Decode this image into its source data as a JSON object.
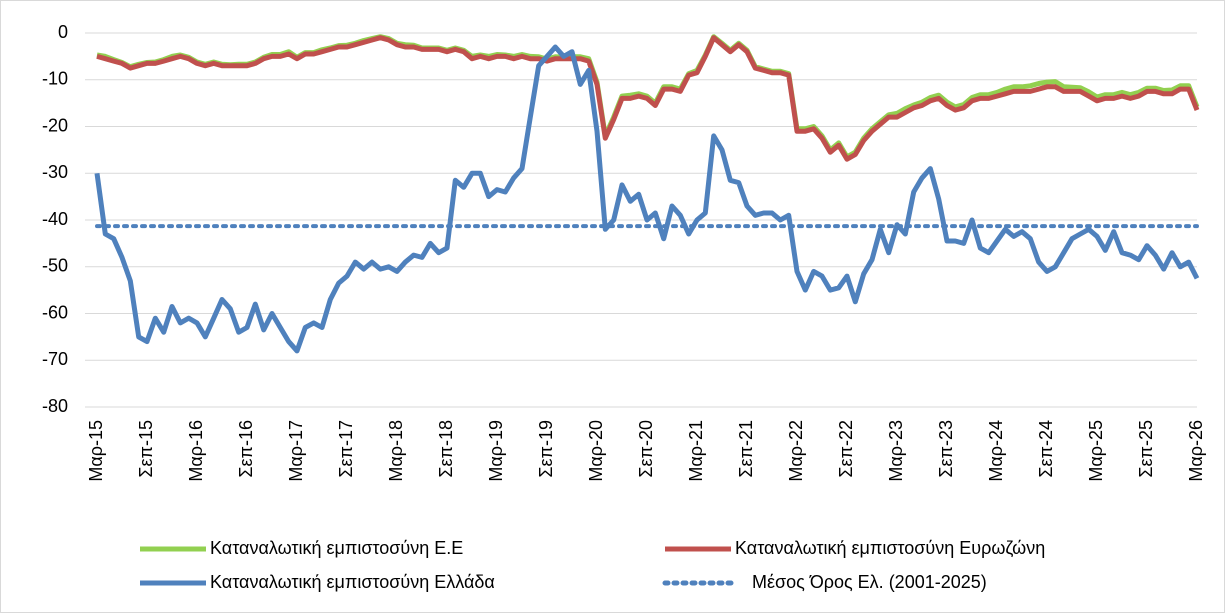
{
  "chart_data": {
    "type": "line",
    "categories": [
      "Μαρ-15",
      null,
      null,
      null,
      null,
      null,
      "Σεπ-15",
      null,
      null,
      null,
      null,
      null,
      "Μαρ-16",
      null,
      null,
      null,
      null,
      null,
      "Σεπ-16",
      null,
      null,
      null,
      null,
      null,
      "Μαρ-17",
      null,
      null,
      null,
      null,
      null,
      "Σεπ-17",
      null,
      null,
      null,
      null,
      null,
      "Μαρ-18",
      null,
      null,
      null,
      null,
      null,
      "Σεπ-18",
      null,
      null,
      null,
      null,
      null,
      "Μαρ-19",
      null,
      null,
      null,
      null,
      null,
      "Σεπ-19",
      null,
      null,
      null,
      null,
      null,
      "Μαρ-20",
      null,
      null,
      null,
      null,
      null,
      "Σεπ-20",
      null,
      null,
      null,
      null,
      null,
      "Μαρ-21",
      null,
      null,
      null,
      null,
      null,
      "Σεπ-21",
      null,
      null,
      null,
      null,
      null,
      "Μαρ-22",
      null,
      null,
      null,
      null,
      null,
      "Σεπ-22",
      null,
      null,
      null,
      null,
      null,
      "Μαρ-23",
      null,
      null,
      null,
      null,
      null,
      "Σεπ-23",
      null,
      null,
      null,
      null,
      null,
      "Μαρ-24",
      null,
      null,
      null,
      null,
      null,
      "Σεπ-24",
      null,
      null,
      null,
      null,
      null,
      "Μαρ-25",
      null,
      null,
      null,
      null,
      null,
      "Σεπ-25",
      null,
      null,
      null,
      null,
      null,
      "Μαρ-26"
    ],
    "series": [
      {
        "name": "Καταναλωτική εμπιστοσύνη Ε.Ε",
        "color": "#92d050",
        "values": [
          -4.7,
          -5,
          -5.7,
          -6.3,
          -7.2,
          -6.7,
          -6.3,
          -6.2,
          -5.7,
          -5,
          -4.7,
          -5.2,
          -6.2,
          -6.7,
          -6.2,
          -6.7,
          -6.8,
          -6.7,
          -6.7,
          -6.2,
          -5.2,
          -4.6,
          -4.6,
          -4,
          -5.2,
          -4.2,
          -4.2,
          -3.6,
          -3.2,
          -2.7,
          -2.6,
          -2.2,
          -1.6,
          -1.2,
          -0.8,
          -1.2,
          -2.2,
          -2.5,
          -2.6,
          -3.2,
          -3.2,
          -3.2,
          -3.7,
          -3.2,
          -3.7,
          -5,
          -4.7,
          -5,
          -4.6,
          -4.7,
          -5,
          -4.6,
          -5,
          -5.1,
          -5.6,
          -5.1,
          -5.2,
          -5.1,
          -5.1,
          -5.5,
          -10.5,
          -22,
          -18,
          -13.5,
          -13.3,
          -13,
          -13.5,
          -15,
          -11.5,
          -11.5,
          -12,
          -8.7,
          -8,
          -4.7,
          -0.8,
          -2.2,
          -3.7,
          -2.2,
          -3.7,
          -7.2,
          -7.7,
          -8.2,
          -8.2,
          -8.7,
          -20.5,
          -20.5,
          -20,
          -22,
          -25,
          -23.5,
          -26.5,
          -25.5,
          -22.5,
          -20.5,
          -19,
          -17.5,
          -17.2,
          -16.2,
          -15.4,
          -14.8,
          -13.8,
          -13.3,
          -14.8,
          -15.8,
          -15.3,
          -13.8,
          -13.2,
          -13.2,
          -12.7,
          -12,
          -11.5,
          -11.5,
          -11.3,
          -10.8,
          -10.5,
          -10.4,
          -11.5,
          -11.6,
          -11.7,
          -12.6,
          -13.7,
          -13.2,
          -13.2,
          -12.7,
          -13.2,
          -12.7,
          -11.8,
          -11.8,
          -12.3,
          -12.2,
          -11.3,
          -11.3,
          -15.8
        ]
      },
      {
        "name": "Καταναλωτική εμπιστοσύνη Ευρωζώνη",
        "color": "#c0504d",
        "values": [
          -5,
          -5.5,
          -6,
          -6.5,
          -7.5,
          -7,
          -6.5,
          -6.5,
          -6,
          -5.5,
          -5,
          -5.5,
          -6.5,
          -7,
          -6.5,
          -7,
          -7,
          -7,
          -7,
          -6.5,
          -5.5,
          -5,
          -5,
          -4.5,
          -5.5,
          -4.5,
          -4.5,
          -4,
          -3.5,
          -3,
          -3,
          -2.5,
          -2,
          -1.5,
          -1,
          -1.5,
          -2.5,
          -3,
          -3,
          -3.5,
          -3.5,
          -3.5,
          -4,
          -3.5,
          -4,
          -5.5,
          -5,
          -5.5,
          -5,
          -5,
          -5.5,
          -5,
          -5.5,
          -5.5,
          -6,
          -5.5,
          -5.5,
          -5.5,
          -5.5,
          -6,
          -11,
          -22.5,
          -18.5,
          -14,
          -14,
          -13.5,
          -14,
          -15.5,
          -12,
          -12,
          -12.5,
          -9,
          -8.5,
          -5,
          -1,
          -2.5,
          -4,
          -2.5,
          -4,
          -7.5,
          -8,
          -8.5,
          -8.5,
          -9,
          -21,
          -21,
          -20.5,
          -22.5,
          -25.5,
          -24,
          -27,
          -26,
          -23,
          -21,
          -19.5,
          -18,
          -18,
          -17,
          -16,
          -15.5,
          -14.5,
          -14,
          -15.5,
          -16.5,
          -16,
          -14.5,
          -14,
          -14,
          -13.5,
          -13,
          -12.5,
          -12.5,
          -12.5,
          -12,
          -11.5,
          -11.5,
          -12.5,
          -12.5,
          -12.5,
          -13.5,
          -14.5,
          -14,
          -14,
          -13.5,
          -14,
          -13.5,
          -12.5,
          -12.5,
          -13,
          -13,
          -12,
          -12,
          -16.5
        ]
      },
      {
        "name": "Καταναλωτική εμπιστοσύνη Ελλάδα",
        "color": "#4f81bd",
        "values": [
          -30,
          -43,
          -44,
          -48,
          -53,
          -65,
          -66,
          -61,
          -64,
          -58.5,
          -62,
          -61,
          -62,
          -65,
          -61,
          -57,
          -59,
          -64,
          -63,
          -58,
          -63.5,
          -60,
          -63,
          -66,
          -68,
          -63,
          -62,
          -63,
          -57,
          -53.5,
          -52,
          -49,
          -50.5,
          -49,
          -50.5,
          -50,
          -51,
          -49,
          -47.5,
          -48,
          -45,
          -47,
          -46,
          -31.5,
          -33,
          -30,
          -30,
          -35,
          -33.5,
          -34,
          -31,
          -29,
          -18,
          -7,
          -5,
          -3,
          -5,
          -4,
          -11,
          -8,
          -21,
          -42,
          -40,
          -32.5,
          -36,
          -34.5,
          -40,
          -38.5,
          -44,
          -37,
          -39,
          -43,
          -40,
          -38.5,
          -22,
          -25,
          -31.5,
          -32,
          -37,
          -39,
          -38.5,
          -38.5,
          -40,
          -39,
          -51,
          -55,
          -51,
          -52,
          -55,
          -54.5,
          -52,
          -57.5,
          -51.5,
          -48.5,
          -42,
          -47,
          -41,
          -43,
          -34,
          -31,
          -29,
          -35.5,
          -44.5,
          -44.5,
          -45,
          -40,
          -46,
          -47,
          -44.5,
          -42,
          -43.5,
          -42.5,
          -44,
          -49,
          -51,
          -50,
          -47,
          -44,
          -43,
          -42,
          -43.5,
          -46.5,
          -42.5,
          -47,
          -47.5,
          -48.5,
          -45.5,
          -47.5,
          -50.5,
          -47,
          -50,
          -49,
          -52.5
        ]
      }
    ],
    "reference_line": {
      "name": "Μέσος Όρος Ελ. (2001-2025)",
      "value": -41.3,
      "color": "#4f81bd",
      "style": "dotted"
    },
    "ylim": [
      -80,
      0
    ],
    "yticks": [
      0,
      -10,
      -20,
      -30,
      -40,
      -50,
      -60,
      -70,
      -80
    ],
    "grid": true,
    "legend": "bottom"
  }
}
